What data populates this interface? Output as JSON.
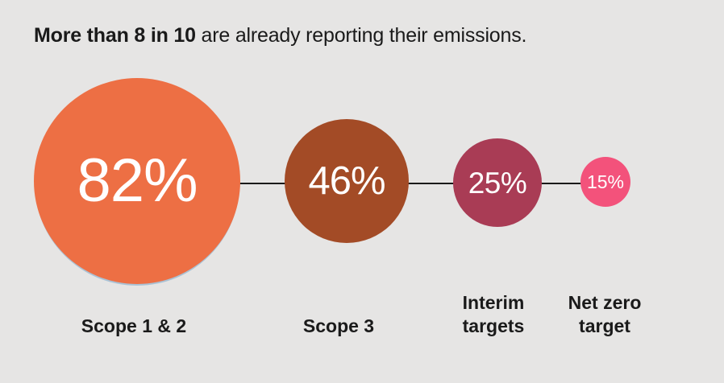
{
  "title": {
    "bold": "More than 8 in 10",
    "rest": " are already reporting their emissions."
  },
  "chart_data": {
    "type": "bubble",
    "title": "More than 8 in 10 are already reporting their emissions.",
    "categories": [
      "Scope 1 & 2",
      "Scope 3",
      "Interim targets",
      "Net zero target"
    ],
    "values": [
      82,
      46,
      25,
      15
    ],
    "value_labels": [
      "82%",
      "46%",
      "25%",
      "15%"
    ],
    "category_lines": [
      [
        "Scope 1 & 2"
      ],
      [
        "Scope 3"
      ],
      [
        "Interim",
        "targets"
      ],
      [
        "Net zero",
        "target"
      ]
    ],
    "colors": [
      "#ed6f44",
      "#a34b26",
      "#a93c55",
      "#f3527b"
    ],
    "value_text_color": "#ffffff",
    "connector_color": "#1a1a1a",
    "background_color": "#e6e5e4",
    "layout": {
      "legend": "none",
      "orientation": "horizontal",
      "circle_sizing": "proportional-to-value",
      "connector": "horizontal line through circle centers"
    }
  }
}
